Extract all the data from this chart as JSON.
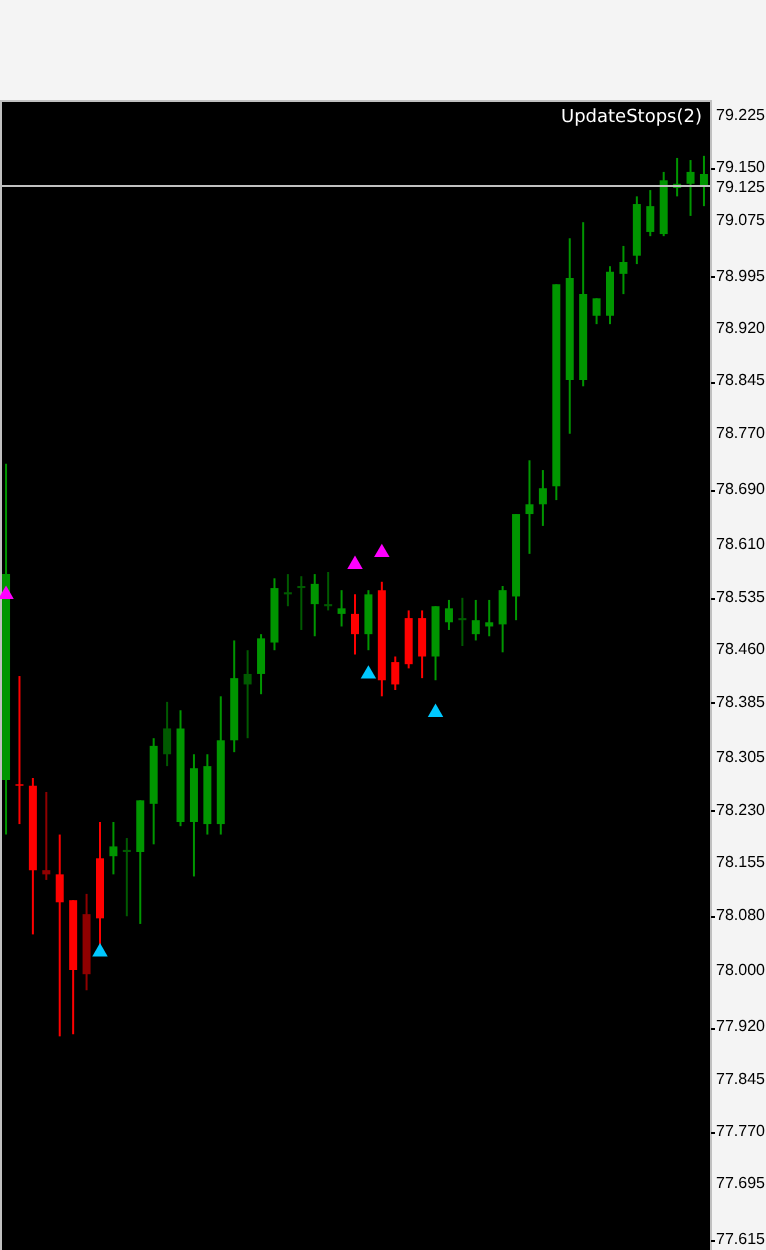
{
  "chart_data": {
    "type": "candlestick",
    "categories": [
      null,
      null,
      null,
      null,
      null,
      null,
      null,
      null,
      null,
      null,
      null,
      null,
      null,
      null,
      null,
      null,
      null,
      null,
      null,
      null,
      null,
      null,
      null,
      null,
      null,
      null,
      null,
      null,
      null,
      null,
      null,
      null,
      null,
      null,
      null,
      null,
      null,
      null,
      null,
      null,
      null,
      null,
      null,
      null,
      null,
      null,
      null,
      null,
      null,
      null,
      null,
      null,
      null
    ],
    "ohlc": [
      [
        78.274,
        78.727,
        78.196,
        78.569
      ],
      [
        78.268,
        78.423,
        78.211,
        78.266
      ],
      [
        78.266,
        78.277,
        78.053,
        78.145
      ],
      [
        78.145,
        78.257,
        78.131,
        78.139
      ],
      [
        78.139,
        78.196,
        77.907,
        78.099
      ],
      [
        78.102,
        78.102,
        77.91,
        78.002
      ],
      [
        78.082,
        78.111,
        77.973,
        77.996
      ],
      [
        78.162,
        78.214,
        78.036,
        78.076
      ],
      [
        78.165,
        78.214,
        78.139,
        78.179
      ],
      [
        78.174,
        78.191,
        78.079,
        78.171
      ],
      [
        78.171,
        78.245,
        78.068,
        78.245
      ],
      [
        78.24,
        78.334,
        78.182,
        78.323
      ],
      [
        78.311,
        78.386,
        78.294,
        78.348
      ],
      [
        78.214,
        78.374,
        78.208,
        78.348
      ],
      [
        78.214,
        78.311,
        78.136,
        78.291
      ],
      [
        78.211,
        78.311,
        78.196,
        78.294
      ],
      [
        78.211,
        78.394,
        78.196,
        78.331
      ],
      [
        78.331,
        78.474,
        78.314,
        78.42
      ],
      [
        78.411,
        78.46,
        78.334,
        78.426
      ],
      [
        78.426,
        78.483,
        78.397,
        78.477
      ],
      [
        78.471,
        78.563,
        78.46,
        78.549
      ],
      [
        78.54,
        78.569,
        78.523,
        78.543
      ],
      [
        78.549,
        78.566,
        78.489,
        78.552
      ],
      [
        78.526,
        78.569,
        78.48,
        78.555
      ],
      [
        78.523,
        78.572,
        78.517,
        78.526
      ],
      [
        78.512,
        78.546,
        78.494,
        78.52
      ],
      [
        78.512,
        78.54,
        78.454,
        78.483
      ],
      [
        78.483,
        78.546,
        78.46,
        78.54
      ],
      [
        78.546,
        78.558,
        78.394,
        78.417
      ],
      [
        78.443,
        78.451,
        78.403,
        78.411
      ],
      [
        78.506,
        78.517,
        78.434,
        78.44
      ],
      [
        78.506,
        78.517,
        78.42,
        78.451
      ],
      [
        78.451,
        78.523,
        78.417,
        78.523
      ],
      [
        78.5,
        78.532,
        78.489,
        78.52
      ],
      [
        78.503,
        78.535,
        78.466,
        78.506
      ],
      [
        78.483,
        78.532,
        78.474,
        78.503
      ],
      [
        78.494,
        78.532,
        78.48,
        78.5
      ],
      [
        78.497,
        78.552,
        78.457,
        78.546
      ],
      [
        78.537,
        78.655,
        78.503,
        78.655
      ],
      [
        78.655,
        78.732,
        78.598,
        78.669
      ],
      [
        78.669,
        78.718,
        78.638,
        78.692
      ],
      [
        78.695,
        78.984,
        78.675,
        78.984
      ],
      [
        78.847,
        79.05,
        78.77,
        78.993
      ],
      [
        78.847,
        79.073,
        78.838,
        78.97
      ],
      [
        78.939,
        78.964,
        78.927,
        78.964
      ],
      [
        78.939,
        79.01,
        78.927,
        79.002
      ],
      [
        78.999,
        79.039,
        78.97,
        79.016
      ],
      [
        79.025,
        79.11,
        79.013,
        79.099
      ],
      [
        79.059,
        79.119,
        79.053,
        79.096
      ],
      [
        79.056,
        79.145,
        79.053,
        79.133
      ],
      [
        79.122,
        79.165,
        79.11,
        79.128
      ],
      [
        79.128,
        79.162,
        79.082,
        79.145
      ],
      [
        79.125,
        79.168,
        79.096,
        79.142
      ]
    ],
    "colors": [
      "#009600",
      "#ff0000",
      "#ff0000",
      "#900000",
      "#ff0000",
      "#ff0000",
      "#900000",
      "#ff0000",
      "#009600",
      "#005a00",
      "#009600",
      "#009600",
      "#005a00",
      "#009600",
      "#009600",
      "#009600",
      "#009600",
      "#009600",
      "#005a00",
      "#009600",
      "#009600",
      "#005a00",
      "#005a00",
      "#009600",
      "#005a00",
      "#009600",
      "#ff0000",
      "#009600",
      "#ff0000",
      "#ff0000",
      "#ff0000",
      "#ff0000",
      "#009600",
      "#009600",
      "#005a00",
      "#009600",
      "#009600",
      "#009600",
      "#009600",
      "#009600",
      "#009600",
      "#009600",
      "#009600",
      "#009600",
      "#009600",
      "#009600",
      "#009600",
      "#009600",
      "#009600",
      "#009600",
      "#009600",
      "#009600",
      "#009600"
    ],
    "series": [
      {
        "type": "scatter",
        "color": "#ff00ff",
        "marker": "triangle",
        "values": [
          78.543,
          null,
          null,
          null,
          null,
          null,
          null,
          null,
          null,
          null,
          null,
          null,
          null,
          null,
          null,
          null,
          null,
          null,
          null,
          null,
          null,
          null,
          null,
          null,
          null,
          null,
          78.586,
          null,
          78.603,
          null,
          null,
          null,
          null,
          null,
          null,
          null,
          null,
          null,
          null,
          null,
          null,
          null,
          null,
          null,
          null,
          null,
          null,
          null,
          null,
          null,
          null,
          null,
          null
        ]
      },
      {
        "type": "scatter",
        "color": "#00c8ff",
        "marker": "triangle",
        "values": [
          null,
          null,
          null,
          null,
          null,
          null,
          null,
          78.031,
          null,
          null,
          null,
          null,
          null,
          null,
          null,
          null,
          null,
          null,
          null,
          null,
          null,
          null,
          null,
          null,
          null,
          null,
          null,
          78.429,
          null,
          null,
          null,
          null,
          78.374,
          null,
          null,
          null,
          null,
          null,
          null,
          null,
          null,
          null,
          null,
          null,
          null,
          null,
          null,
          null,
          null,
          null,
          null,
          null,
          null
        ]
      }
    ],
    "ylim": [
      77.601,
      79.248
    ],
    "yticks": [
      {
        "value": 79.225,
        "label": "79.225"
      },
      {
        "value": 79.15,
        "label": "79.150"
      },
      {
        "value": 79.075,
        "label": "79.075"
      },
      {
        "value": 78.995,
        "label": "78.995"
      },
      {
        "value": 78.92,
        "label": "78.920"
      },
      {
        "value": 78.845,
        "label": "78.845"
      },
      {
        "value": 78.77,
        "label": "78.770"
      },
      {
        "value": 78.69,
        "label": "78.690"
      },
      {
        "value": 78.61,
        "label": "78.610"
      },
      {
        "value": 78.535,
        "label": "78.535"
      },
      {
        "value": 78.46,
        "label": "78.460"
      },
      {
        "value": 78.385,
        "label": "78.385"
      },
      {
        "value": 78.305,
        "label": "78.305"
      },
      {
        "value": 78.23,
        "label": "78.230"
      },
      {
        "value": 78.155,
        "label": "78.155"
      },
      {
        "value": 78.08,
        "label": "78.080"
      },
      {
        "value": 78.0,
        "label": "78.000"
      },
      {
        "value": 77.92,
        "label": "77.920"
      },
      {
        "value": 77.845,
        "label": "77.845"
      },
      {
        "value": 77.77,
        "label": "77.770"
      },
      {
        "value": 77.695,
        "label": "77.695"
      },
      {
        "value": 77.615,
        "label": "77.615"
      }
    ],
    "ref_lines": [
      {
        "axis": "y",
        "value": 79.125,
        "label": "79.125",
        "color": "#c0c0c0"
      }
    ],
    "annotations": [
      "UpdateStops(2)"
    ]
  }
}
